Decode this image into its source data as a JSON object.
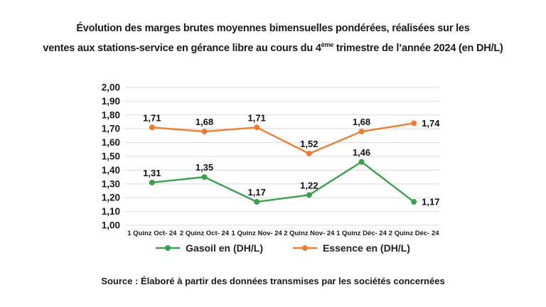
{
  "title": {
    "line1": "Évolution des marges brutes moyennes bimensuelles pondérées, réalisées sur les",
    "line2_before": "ventes aux stations-service en gérance libre au cours du 4",
    "line2_sup": "ème",
    "line2_after": " trimestre de l’année 2024 (en DH/L)"
  },
  "chart_data": {
    "type": "line",
    "title": "Évolution des marges brutes moyennes bimensuelles pondérées, réalisées sur les ventes aux stations-service en gérance libre au cours du 4ème trimestre de l’année 2024 (en DH/L)",
    "categories": [
      "1 Quinz Oct- 24",
      "2 Quinz Oct- 24",
      "1 Quinz Nov- 24",
      "2 Quinz Nov- 24",
      "1 Quinz Déc- 24",
      "2 Quinz Déc- 24"
    ],
    "series": [
      {
        "name": "Gasoil en (DH/L)",
        "color": "#3BA04A",
        "values": [
          1.31,
          1.35,
          1.17,
          1.22,
          1.46,
          1.17
        ],
        "labels": [
          "1,31",
          "1,35",
          "1,17",
          "1,22",
          "1,46",
          "1,17"
        ]
      },
      {
        "name": "Essence en (DH/L)",
        "color": "#ED7D31",
        "values": [
          1.71,
          1.68,
          1.71,
          1.52,
          1.68,
          1.74
        ],
        "labels": [
          "1,71",
          "1,68",
          "1,71",
          "1,52",
          "1,68",
          "1,74"
        ]
      }
    ],
    "ylim": [
      1.0,
      2.0
    ],
    "ytick_labels": [
      "1,00",
      "1,10",
      "1,20",
      "1,30",
      "1,40",
      "1,50",
      "1,60",
      "1,70",
      "1,80",
      "1,90",
      "2,00"
    ],
    "decimal_separator": ",",
    "grid": true,
    "gridline_color": "#dbdbdb",
    "label_color": "#1a1a1a",
    "legend_position": "bottom",
    "xlabel": "",
    "ylabel": ""
  },
  "source": "Source : Élaboré à partir des données transmises par les sociétés concernées"
}
